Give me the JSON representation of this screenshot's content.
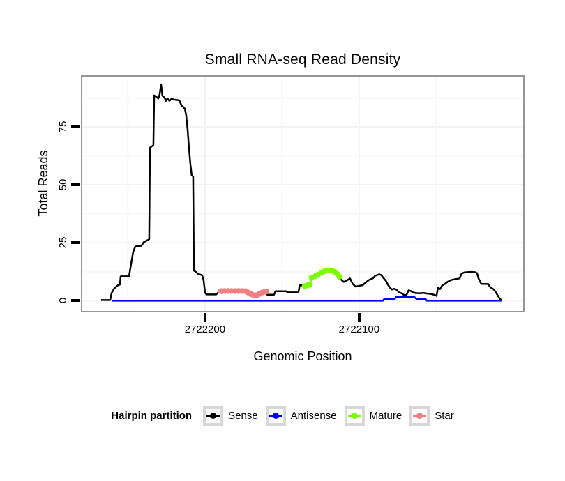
{
  "chart_data": {
    "type": "line",
    "title": "Small RNA-seq Read Density",
    "xlabel": "Genomic Position",
    "ylabel": "Total Reads",
    "grid": true,
    "legend_position": "bottom",
    "colors": {
      "panel_border": "#969696",
      "tick": "#000000",
      "gridline_major": "#f2f2f2",
      "gridline_minor": "#f8f8f8"
    },
    "x_axis": {
      "reversed": true,
      "domain_left": 2722279.6,
      "domain_right": 2721993.6,
      "ticks": [
        {
          "value": 2722200,
          "label": "2722200"
        },
        {
          "value": 2722100,
          "label": "2722100"
        }
      ],
      "minor_gridlines": [
        2722250,
        2722150,
        2722050
      ]
    },
    "y_axis": {
      "domain_bottom": -4.4,
      "domain_top": 96.6,
      "ticks": [
        {
          "value": 0,
          "label": "0"
        },
        {
          "value": 25,
          "label": "25"
        },
        {
          "value": 50,
          "label": "50"
        },
        {
          "value": 75,
          "label": "75"
        }
      ],
      "minor_gridlines": [
        12.5,
        37.5,
        62.5,
        87.5
      ]
    },
    "series": [
      {
        "name": "Sense",
        "color": "#000000",
        "style": "line",
        "points": [
          [
            2722267.4,
            0.3
          ],
          [
            2722261.5,
            0.3
          ],
          [
            2722260.6,
            3.3
          ],
          [
            2722258.8,
            5.4
          ],
          [
            2722256.6,
            6.6
          ],
          [
            2722255.2,
            7
          ],
          [
            2722254.7,
            10.5
          ],
          [
            2722249.3,
            10.5
          ],
          [
            2722248.4,
            14
          ],
          [
            2722247.5,
            17.5
          ],
          [
            2722246.6,
            21
          ],
          [
            2722245.2,
            23.4
          ],
          [
            2722241.2,
            23.7
          ],
          [
            2722239.8,
            25.2
          ],
          [
            2722237.6,
            26
          ],
          [
            2722236.2,
            26.5
          ],
          [
            2722235.7,
            66
          ],
          [
            2722233.5,
            67
          ],
          [
            2722233,
            88.5
          ],
          [
            2722231.7,
            88
          ],
          [
            2722230.3,
            87.2
          ],
          [
            2722229.4,
            89
          ],
          [
            2722228.5,
            93.3
          ],
          [
            2722227.6,
            88.4
          ],
          [
            2722226.2,
            87.5
          ],
          [
            2722225.3,
            86.2
          ],
          [
            2722224.4,
            87.2
          ],
          [
            2722223.1,
            86.2
          ],
          [
            2722221.7,
            87
          ],
          [
            2722219,
            86.6
          ],
          [
            2722216.7,
            86.4
          ],
          [
            2722215.4,
            84.4
          ],
          [
            2722214,
            83.4
          ],
          [
            2722213.1,
            82.8
          ],
          [
            2722212.2,
            80
          ],
          [
            2722211.3,
            74
          ],
          [
            2722210.4,
            66
          ],
          [
            2722209.5,
            59
          ],
          [
            2722208.6,
            54
          ],
          [
            2722207.7,
            53.6
          ],
          [
            2722207.2,
            13
          ],
          [
            2722205.9,
            12.4
          ],
          [
            2722204.5,
            11.6
          ],
          [
            2722201.8,
            11
          ],
          [
            2722200.9,
            8.7
          ],
          [
            2722200,
            3.6
          ],
          [
            2722199.1,
            2.7
          ],
          [
            2722192.8,
            2.7
          ],
          [
            2722191.4,
            3.5
          ],
          [
            2722189.6,
            4.1
          ],
          [
            2722173.8,
            4.2
          ],
          [
            2722171.5,
            3.3
          ],
          [
            2722169.2,
            2.6
          ],
          [
            2722167,
            2.2
          ],
          [
            2722164.7,
            2.9
          ],
          [
            2722162.4,
            3.6
          ],
          [
            2722160.6,
            3.9
          ],
          [
            2722159.7,
            2.6
          ],
          [
            2722155.2,
            2.6
          ],
          [
            2722154.3,
            4.1
          ],
          [
            2722147.5,
            4.1
          ],
          [
            2722146.2,
            3.6
          ],
          [
            2722139.4,
            3.6
          ],
          [
            2722138.5,
            6.8
          ],
          [
            2722135.3,
            6.3
          ],
          [
            2722133.9,
            6.6
          ],
          [
            2722132.1,
            6.9
          ],
          [
            2722130.8,
            10
          ],
          [
            2722128.5,
            10.6
          ],
          [
            2722126.7,
            11.2
          ],
          [
            2722124.4,
            12.2
          ],
          [
            2722122.2,
            12.8
          ],
          [
            2722119.9,
            13.1
          ],
          [
            2722117.6,
            13
          ],
          [
            2722115.8,
            12.4
          ],
          [
            2722114,
            11.4
          ],
          [
            2722112.7,
            10.4
          ],
          [
            2722111.8,
            9.2
          ],
          [
            2722110,
            8.1
          ],
          [
            2722108.1,
            8.7
          ],
          [
            2722105.9,
            9.6
          ],
          [
            2722104.1,
            7.2
          ],
          [
            2722102.3,
            6.1
          ],
          [
            2722099.5,
            6.5
          ],
          [
            2722097.7,
            6.7
          ],
          [
            2722095.5,
            8
          ],
          [
            2722093.2,
            9.1
          ],
          [
            2722091,
            9.7
          ],
          [
            2722089.6,
            10.8
          ],
          [
            2722088.2,
            11.1
          ],
          [
            2722086.9,
            11.4
          ],
          [
            2722085.5,
            11
          ],
          [
            2722084.2,
            9.8
          ],
          [
            2722082.8,
            8.7
          ],
          [
            2722081.4,
            7
          ],
          [
            2722080.1,
            5.7
          ],
          [
            2722078.7,
            4.8
          ],
          [
            2722077.4,
            5.2
          ],
          [
            2722075.6,
            4.7
          ],
          [
            2722074.2,
            3.6
          ],
          [
            2722072.4,
            3.2
          ],
          [
            2722070.6,
            2.3
          ],
          [
            2722069.2,
            2.6
          ],
          [
            2722067.9,
            4.5
          ],
          [
            2722066.5,
            4.2
          ],
          [
            2722065.2,
            3.6
          ],
          [
            2722063.3,
            3.3
          ],
          [
            2722060.6,
            3.2
          ],
          [
            2722058.4,
            3.4
          ],
          [
            2722056.1,
            3.1
          ],
          [
            2722053.4,
            2.9
          ],
          [
            2722051.6,
            2.6
          ],
          [
            2722049.8,
            2.1
          ],
          [
            2722048.9,
            5.5
          ],
          [
            2722047.5,
            5
          ],
          [
            2722046.2,
            6.6
          ],
          [
            2722044.3,
            7.3
          ],
          [
            2722042.5,
            8.2
          ],
          [
            2722040.7,
            8.8
          ],
          [
            2722038.9,
            9.2
          ],
          [
            2722036.7,
            9.4
          ],
          [
            2722034.8,
            9.7
          ],
          [
            2722033.5,
            11.7
          ],
          [
            2722031.7,
            12.2
          ],
          [
            2722028.1,
            12.4
          ],
          [
            2722024.9,
            12.3
          ],
          [
            2722023.5,
            11.9
          ],
          [
            2722022.6,
            9.7
          ],
          [
            2722021.7,
            8.5
          ],
          [
            2722020.8,
            7.3
          ],
          [
            2722016.3,
            7.2
          ],
          [
            2722014.9,
            5.8
          ],
          [
            2722013.1,
            5.1
          ],
          [
            2722011.8,
            4.1
          ],
          [
            2722010.4,
            2.6
          ],
          [
            2722009,
            1
          ],
          [
            2722007.7,
            0.2
          ]
        ]
      },
      {
        "name": "Antisense",
        "color": "#0000ff",
        "style": "line",
        "points": [
          [
            2722260.6,
            0
          ],
          [
            2722084.6,
            0
          ],
          [
            2722083.7,
            0.8
          ],
          [
            2722076.9,
            0.8
          ],
          [
            2722076,
            1.6
          ],
          [
            2722064.2,
            1.6
          ],
          [
            2722062.9,
            0.8
          ],
          [
            2722057,
            0.8
          ],
          [
            2722056.1,
            0
          ],
          [
            2722007.7,
            0
          ]
        ]
      },
      {
        "name": "Star",
        "color": "#f08080",
        "style": "points",
        "points": [
          [
            2722189.6,
            4.1
          ],
          [
            2722187.3,
            4.2
          ],
          [
            2722185.1,
            4.2
          ],
          [
            2722182.8,
            4.2
          ],
          [
            2722180.5,
            4.2
          ],
          [
            2722178.3,
            4.2
          ],
          [
            2722176,
            4.2
          ],
          [
            2722173.8,
            4.1
          ],
          [
            2722172,
            3.5
          ],
          [
            2722170.1,
            2.8
          ],
          [
            2722168.3,
            2.4
          ],
          [
            2722166.5,
            2.3
          ],
          [
            2722164.7,
            2.9
          ],
          [
            2722162.9,
            3.5
          ],
          [
            2722161.5,
            3.8
          ],
          [
            2722160.2,
            4
          ]
        ]
      },
      {
        "name": "Mature",
        "color": "#7cfc00",
        "style": "points",
        "points": [
          [
            2722135.3,
            6.3
          ],
          [
            2722133.9,
            6.6
          ],
          [
            2722132.1,
            6.9
          ],
          [
            2722130.8,
            10
          ],
          [
            2722128.5,
            10.6
          ],
          [
            2722126.7,
            11.2
          ],
          [
            2722124.4,
            12.2
          ],
          [
            2722122.2,
            12.8
          ],
          [
            2722119.9,
            13.1
          ],
          [
            2722117.6,
            13
          ],
          [
            2722115.8,
            12.4
          ],
          [
            2722114,
            11.4
          ],
          [
            2722112.7,
            10.4
          ]
        ]
      }
    ]
  },
  "legend": {
    "title": "Hairpin partition",
    "items": [
      {
        "label": "Sense",
        "color": "#000000"
      },
      {
        "label": "Antisense",
        "color": "#0000ff"
      },
      {
        "label": "Mature",
        "color": "#7cfc00"
      },
      {
        "label": "Star",
        "color": "#f08080"
      }
    ]
  }
}
